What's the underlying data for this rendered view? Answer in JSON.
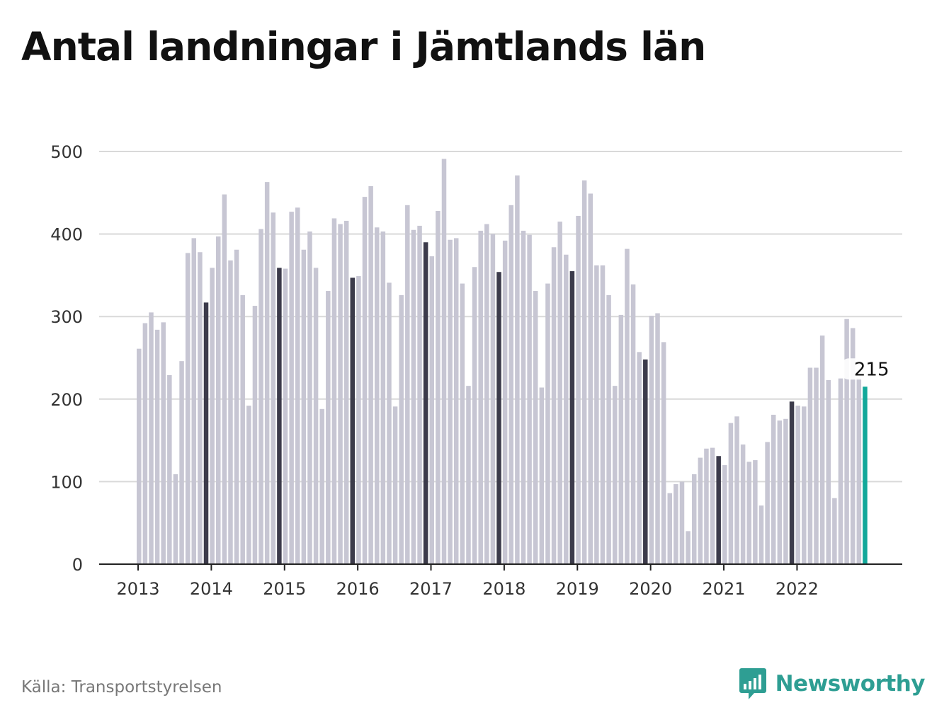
{
  "title": "Antal landningar i Jämtlands län",
  "source": "Källa: Transportstyrelsen",
  "brand": {
    "name": "Newsworthy",
    "icon": "newsworthy-logo-icon",
    "color": "#2e9e93"
  },
  "colors": {
    "bar": "#c7c6d3",
    "highlight": "#3c3b4b",
    "latest": "#12a89a",
    "grid": "#d9d9d9",
    "axis": "#222222"
  },
  "chart_data": {
    "type": "bar",
    "title": "Antal landningar i Jämtlands län",
    "xlabel": "",
    "ylabel": "",
    "ylim": [
      0,
      500
    ],
    "yticks": [
      0,
      100,
      200,
      300,
      400,
      500
    ],
    "grid": true,
    "x_tick_labels": [
      "2013",
      "2014",
      "2015",
      "2016",
      "2017",
      "2018",
      "2019",
      "2020",
      "2021",
      "2022"
    ],
    "x_tick_positions": [
      0,
      12,
      24,
      36,
      48,
      60,
      72,
      84,
      96,
      108
    ],
    "highlight_indices": [
      11,
      23,
      35,
      47,
      59,
      71,
      83,
      95,
      107
    ],
    "annotation": {
      "index": 119,
      "label": "215"
    },
    "values": [
      261,
      292,
      305,
      284,
      293,
      229,
      109,
      246,
      377,
      395,
      378,
      317,
      359,
      397,
      448,
      368,
      381,
      326,
      192,
      313,
      406,
      463,
      426,
      359,
      358,
      427,
      432,
      381,
      403,
      359,
      188,
      331,
      419,
      412,
      416,
      347,
      349,
      445,
      458,
      408,
      403,
      341,
      191,
      326,
      435,
      405,
      410,
      390,
      373,
      428,
      491,
      393,
      395,
      340,
      216,
      360,
      404,
      412,
      400,
      354,
      392,
      435,
      471,
      404,
      399,
      331,
      214,
      340,
      384,
      415,
      375,
      355,
      422,
      465,
      449,
      362,
      362,
      326,
      216,
      302,
      382,
      339,
      257,
      248,
      301,
      304,
      269,
      86,
      97,
      100,
      40,
      109,
      129,
      140,
      141,
      131,
      120,
      171,
      179,
      145,
      124,
      126,
      71,
      148,
      181,
      174,
      176,
      197,
      192,
      191,
      238,
      238,
      277,
      223,
      80,
      225,
      297,
      286,
      226,
      215
    ]
  }
}
